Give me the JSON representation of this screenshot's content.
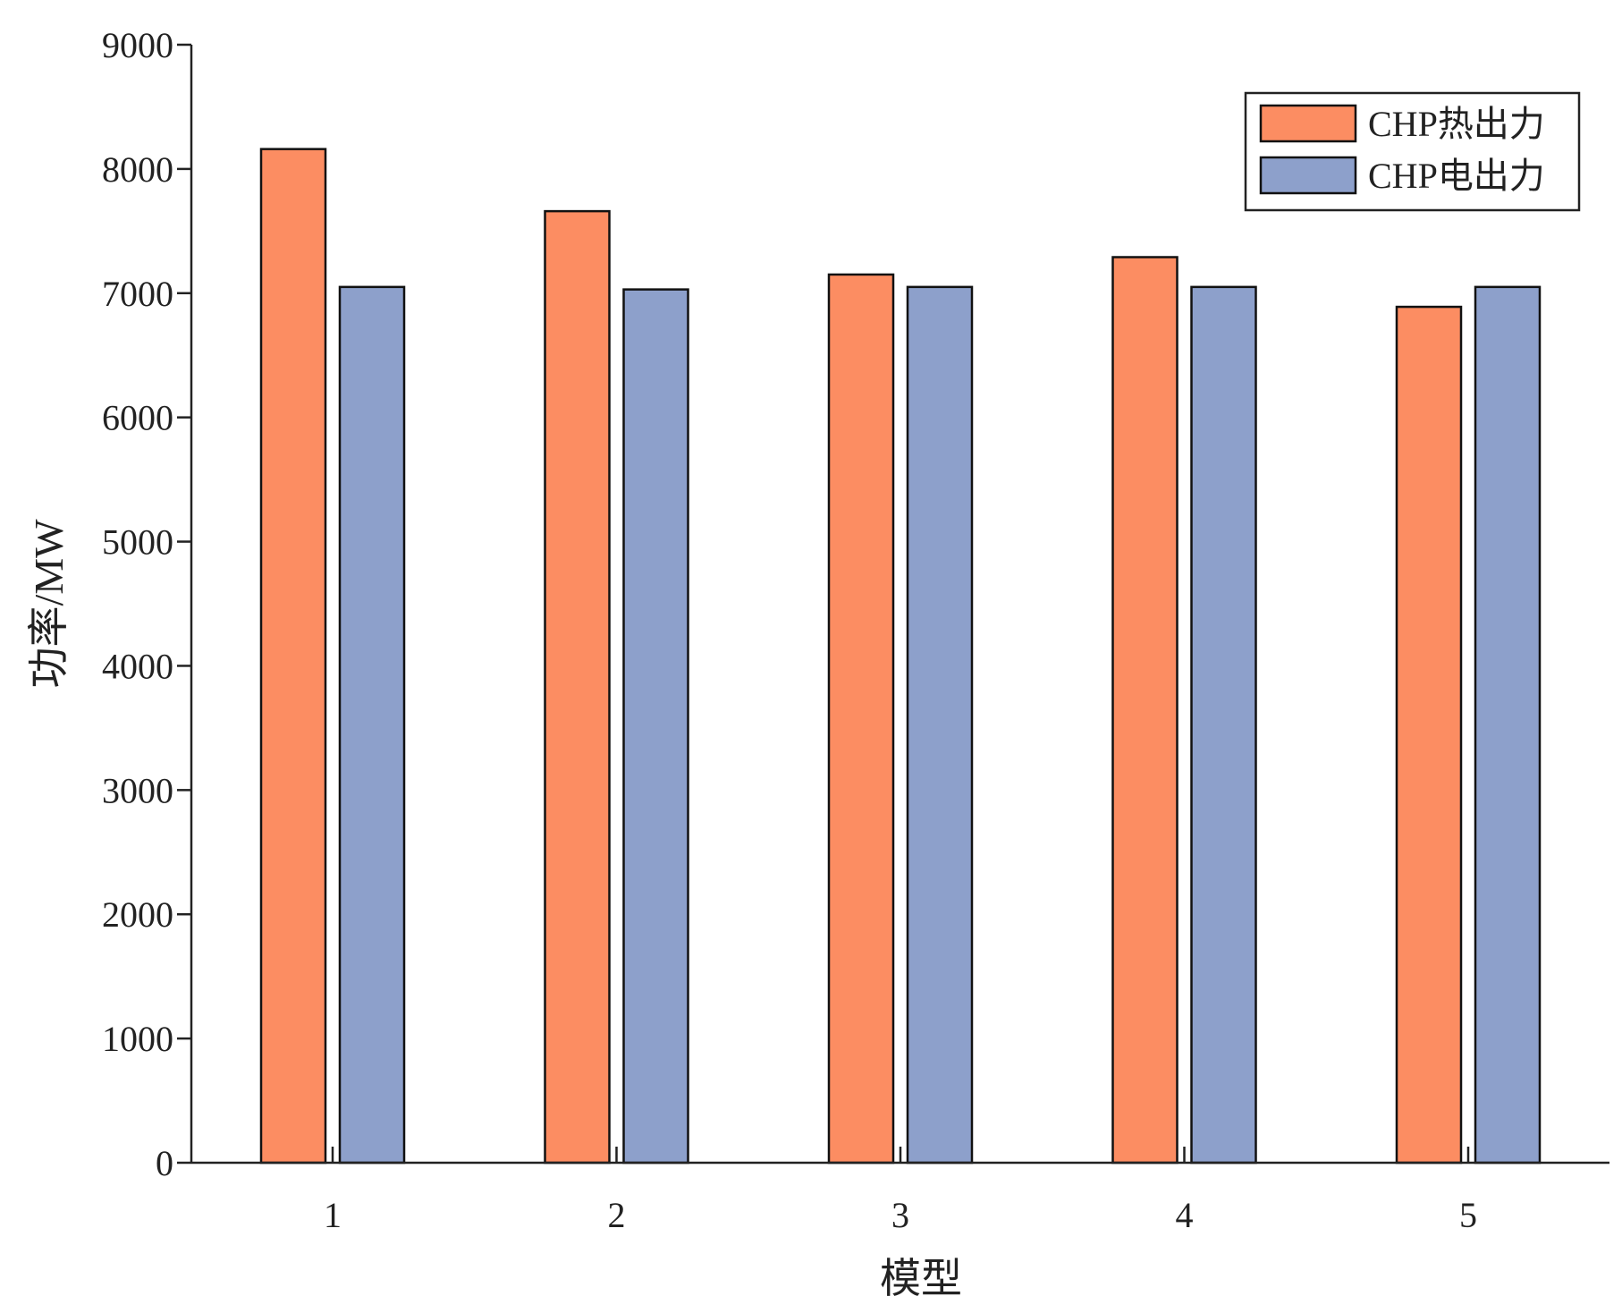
{
  "chart_data": {
    "type": "bar",
    "title": "",
    "xlabel": "模型",
    "ylabel": "功率/MW",
    "categories": [
      "1",
      "2",
      "3",
      "4",
      "5"
    ],
    "series": [
      {
        "name": "CHP热出力",
        "color": "#FC8D62",
        "values": [
          8160,
          7660,
          7150,
          7290,
          6890
        ]
      },
      {
        "name": "CHP电出力",
        "color": "#8DA0CB",
        "values": [
          7050,
          7030,
          7050,
          7050,
          7050
        ]
      }
    ],
    "ylim": [
      0,
      9000
    ],
    "yticks": [
      "0",
      "1000",
      "2000",
      "3000",
      "4000",
      "5000",
      "6000",
      "7000",
      "8000",
      "9000"
    ],
    "grid": false,
    "legend_position": "top-right"
  }
}
